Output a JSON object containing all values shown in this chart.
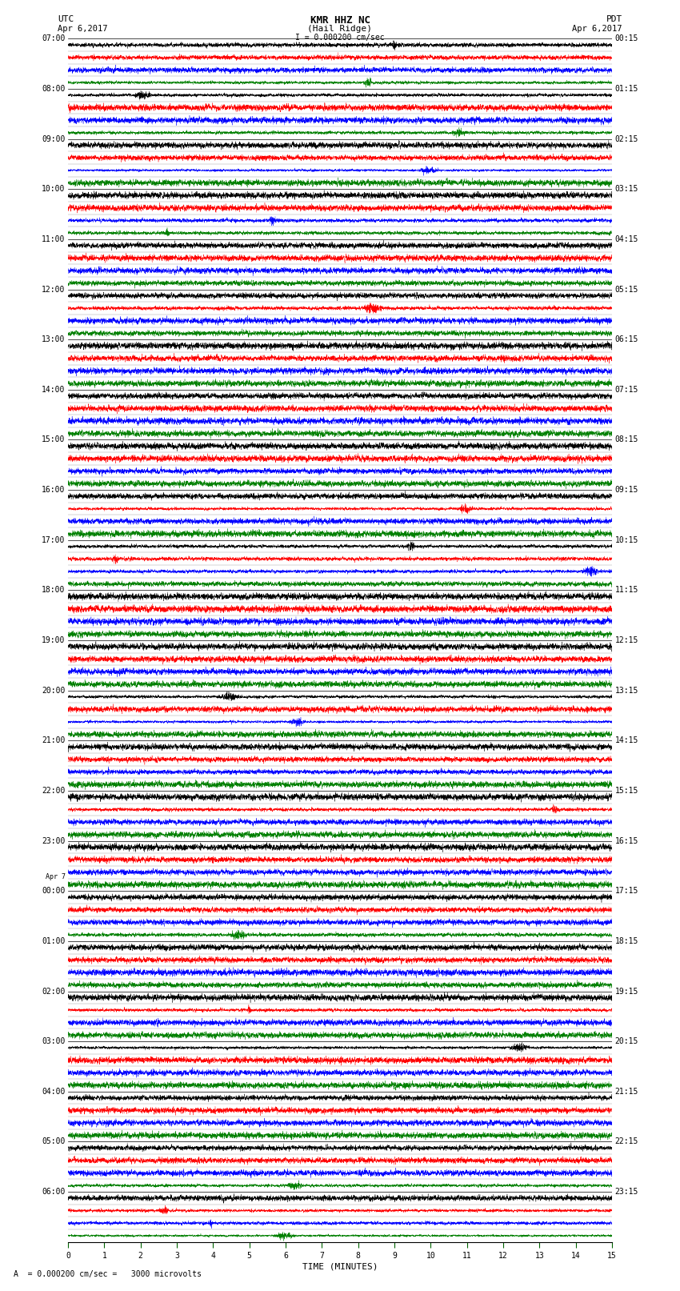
{
  "title_line1": "KMR HHZ NC",
  "title_line2": "(Hail Ridge)",
  "scale_bar": "I = 0.000200 cm/sec",
  "utc_label": "UTC",
  "utc_date": "Apr 6,2017",
  "pdt_label": "PDT",
  "pdt_date": "Apr 6,2017",
  "left_times": [
    "07:00",
    "08:00",
    "09:00",
    "10:00",
    "11:00",
    "12:00",
    "13:00",
    "14:00",
    "15:00",
    "16:00",
    "17:00",
    "18:00",
    "19:00",
    "20:00",
    "21:00",
    "22:00",
    "23:00",
    "Apr 7\n00:00",
    "01:00",
    "02:00",
    "03:00",
    "04:00",
    "05:00",
    "06:00"
  ],
  "right_times": [
    "00:15",
    "01:15",
    "02:15",
    "03:15",
    "04:15",
    "05:15",
    "06:15",
    "07:15",
    "08:15",
    "09:15",
    "10:15",
    "11:15",
    "12:15",
    "13:15",
    "14:15",
    "15:15",
    "16:15",
    "17:15",
    "18:15",
    "19:15",
    "20:15",
    "21:15",
    "22:15",
    "23:15"
  ],
  "xlabel": "TIME (MINUTES)",
  "xticks": [
    0,
    1,
    2,
    3,
    4,
    5,
    6,
    7,
    8,
    9,
    10,
    11,
    12,
    13,
    14,
    15
  ],
  "bottom_note": "A  = 0.000200 cm/sec =   3000 microvolts",
  "n_rows": 24,
  "sub_colors": [
    "black",
    "red",
    "blue",
    "green"
  ],
  "bg_color": "white",
  "n_samples": 6000
}
